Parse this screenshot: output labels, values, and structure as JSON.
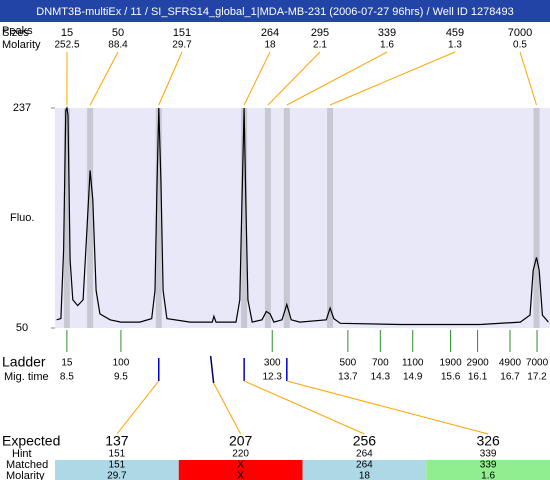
{
  "header": {
    "title": "DNMT3B-multiEx / 11 / SI_SFRS14_global_1|MDA-MB-231 (2006-07-27 96hrs) / Well ID 1278493"
  },
  "peaks": {
    "labels": [
      "Peaks",
      "Sizes"
    ],
    "molarity_label": "Molarity",
    "items": [
      {
        "size": 15,
        "molarity": 252.5,
        "time": 8.5
      },
      {
        "size": 50,
        "molarity": 88.4,
        "time": 8.93
      },
      {
        "size": 151,
        "molarity": 29.7,
        "time": 10.2
      },
      {
        "size": 264,
        "molarity": 18,
        "time": 11.78
      },
      {
        "size": 295,
        "molarity": 2.1,
        "time": 12.22
      },
      {
        "size": 339,
        "molarity": 1.6,
        "time": 12.57
      },
      {
        "size": 459,
        "molarity": 1.3,
        "time": 13.37
      },
      {
        "size": 7000,
        "molarity": 0.5,
        "time": 17.19
      }
    ]
  },
  "chart_data": {
    "type": "line",
    "ylabel": "Fluo.",
    "color": "#000000",
    "background": "#e8e8f8",
    "xlim": [
      8.28,
      17.44
    ],
    "ylim": [
      50,
      237
    ],
    "yticks": [
      50,
      237
    ],
    "x": [
      8.31,
      8.39,
      8.44,
      8.48,
      8.5,
      8.52,
      8.56,
      8.61,
      8.7,
      8.8,
      8.87,
      8.93,
      8.98,
      9.04,
      9.11,
      9.3,
      9.5,
      9.85,
      10.07,
      10.13,
      10.17,
      10.2,
      10.24,
      10.28,
      10.35,
      10.78,
      11.19,
      11.22,
      11.26,
      11.63,
      11.7,
      11.74,
      11.78,
      11.81,
      11.85,
      11.93,
      12.11,
      12.19,
      12.26,
      12.33,
      12.48,
      12.57,
      12.65,
      12.81,
      13.3,
      13.37,
      13.44,
      13.56,
      14.67,
      16.15,
      16.89,
      17.07,
      17.13,
      17.19,
      17.24,
      17.3,
      17.41
    ],
    "values": [
      57,
      58,
      116,
      235,
      237,
      231,
      108,
      74,
      69,
      74,
      133,
      184,
      159,
      82,
      62,
      57,
      55,
      55,
      58,
      82,
      176,
      237,
      176,
      82,
      58,
      55,
      55,
      60,
      55,
      55,
      74,
      159,
      237,
      159,
      74,
      55,
      57,
      64,
      62,
      55,
      57,
      70,
      57,
      55,
      57,
      67,
      58,
      54,
      53,
      53,
      55,
      61,
      99,
      110,
      99,
      61,
      55
    ]
  },
  "ladder": {
    "label": "Ladder",
    "time_label": "Mig. time",
    "sizes": [
      15,
      100,
      300,
      500,
      700,
      1100,
      1900,
      2900,
      4900,
      7000
    ],
    "times": [
      8.5,
      9.5,
      12.3,
      13.7,
      14.3,
      14.9,
      15.6,
      16.1,
      16.7,
      17.2
    ]
  },
  "table": {
    "row_labels": [
      "Expected",
      "Hint",
      "Matched",
      "Molarity"
    ],
    "columns": [
      {
        "expected": 137,
        "expected_color": "#ff0000",
        "hint": 151,
        "matched": 151,
        "molarity": 29.7,
        "color": "#add8e6",
        "peak_time": 10.2
      },
      {
        "expected": 207,
        "expected_color": "#000000",
        "hint": 220,
        "matched": "X",
        "molarity": "X",
        "color": "#ff0000",
        "peak_time": null
      },
      {
        "expected": 256,
        "expected_color": "#000000",
        "hint": 264,
        "matched": 264,
        "molarity": 18,
        "color": "#add8e6",
        "peak_time": 11.78
      },
      {
        "expected": 326,
        "expected_color": "#ff0000",
        "hint": 339,
        "matched": 339,
        "molarity": 1.6,
        "color": "#90ee90",
        "peak_time": 12.57
      }
    ]
  }
}
